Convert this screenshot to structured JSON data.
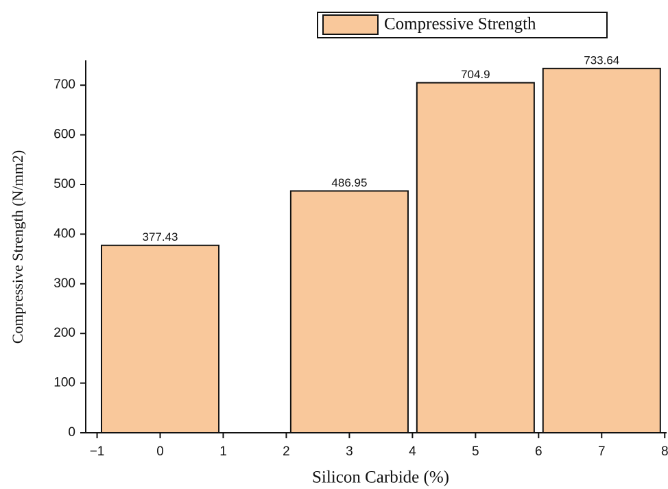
{
  "chart_data": {
    "type": "bar",
    "x_label": "Silicon Carbide (%)",
    "y_label": "Compressive Strength (N/mm2)",
    "x": [
      0,
      3,
      5,
      7
    ],
    "series": [
      {
        "name": "Compressive Strength",
        "color": "#f9c89b",
        "values": [
          377.43,
          486.95,
          704.9,
          733.64
        ]
      }
    ],
    "xlim": [
      -1.18,
      8.03
    ],
    "xticks": [
      {
        "value": -1,
        "label": "−1"
      },
      0,
      1,
      2,
      3,
      4,
      5,
      6,
      7,
      8
    ],
    "ylim": [
      0,
      750
    ],
    "yticks": [
      0,
      100,
      200,
      300,
      400,
      500,
      600,
      700
    ],
    "legend": "top-right"
  }
}
